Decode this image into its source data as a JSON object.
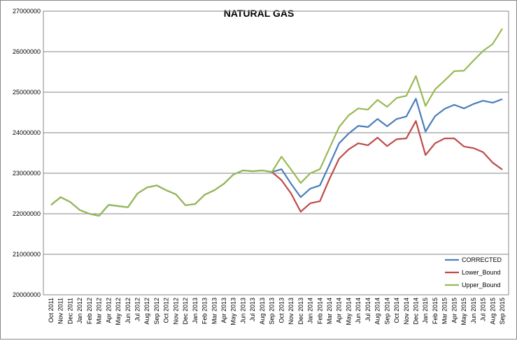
{
  "chart_data": {
    "type": "line",
    "title": "NATURAL  GAS",
    "categories": [
      "Oct 2011",
      "Nov 2011",
      "Dec 2011",
      "Jan 2012",
      "Feb 2012",
      "Mar 2012",
      "Apr 2012",
      "May 2012",
      "Jun 2012",
      "Jul 2012",
      "Aug 2012",
      "Sep 2012",
      "Oct 2012",
      "Nov 2012",
      "Dec 2012",
      "Jan 2013",
      "Feb 2013",
      "Mar 2013",
      "Apr 2013",
      "May 2013",
      "Jun 2013",
      "Jul 2013",
      "Aug 2013",
      "Sep 2013",
      "Oct 2013",
      "Nov 2013",
      "Dec 2013",
      "Jan 2014",
      "Feb 2014",
      "Mar 2014",
      "Apr 2014",
      "May 2014",
      "Jun 2014",
      "Jul 2014",
      "Aug 2014",
      "Sep 2014",
      "Oct 2014",
      "Nov 2014",
      "Dec 2014",
      "Jan 2015",
      "Feb 2015",
      "Mar 2015",
      "Apr 2015",
      "May 2015",
      "Jun 2015",
      "Jul 2015",
      "Aug 2015",
      "Sep 2015"
    ],
    "series": [
      {
        "name": "CORRECTED",
        "color": "#4a7ebb",
        "values": [
          22220000,
          22410000,
          22290000,
          22090000,
          22000000,
          21950000,
          22220000,
          22190000,
          22160000,
          22500000,
          22650000,
          22700000,
          22580000,
          22480000,
          22210000,
          22240000,
          22470000,
          22580000,
          22740000,
          22970000,
          23070000,
          23050000,
          23070000,
          23030000,
          23100000,
          22740000,
          22410000,
          22620000,
          22700000,
          23210000,
          23740000,
          23980000,
          24170000,
          24140000,
          24340000,
          24160000,
          24340000,
          24400000,
          24840000,
          24030000,
          24410000,
          24590000,
          24690000,
          24600000,
          24710000,
          24790000,
          24740000,
          24830000
        ]
      },
      {
        "name": "Lower_Bound",
        "color": "#be4b48",
        "values": [
          null,
          null,
          null,
          null,
          null,
          null,
          null,
          null,
          null,
          null,
          null,
          null,
          null,
          null,
          null,
          null,
          null,
          null,
          null,
          null,
          null,
          null,
          null,
          23030000,
          22830000,
          22500000,
          22050000,
          22260000,
          22310000,
          22860000,
          23360000,
          23590000,
          23740000,
          23690000,
          23880000,
          23670000,
          23840000,
          23860000,
          24290000,
          23450000,
          23740000,
          23860000,
          23860000,
          23660000,
          23620000,
          23520000,
          23260000,
          23090000
        ]
      },
      {
        "name": "Upper_Bound",
        "color": "#98b954",
        "values": [
          22220000,
          22410000,
          22290000,
          22090000,
          22000000,
          21950000,
          22220000,
          22190000,
          22160000,
          22500000,
          22650000,
          22700000,
          22580000,
          22480000,
          22210000,
          22240000,
          22470000,
          22580000,
          22740000,
          22970000,
          23070000,
          23050000,
          23070000,
          23030000,
          23410000,
          23090000,
          22760000,
          23000000,
          23100000,
          23620000,
          24140000,
          24430000,
          24600000,
          24570000,
          24810000,
          24640000,
          24860000,
          24910000,
          25400000,
          24660000,
          25070000,
          25290000,
          25520000,
          25530000,
          25780000,
          26020000,
          26190000,
          26570000
        ]
      }
    ],
    "ylim": [
      20000000,
      27000000
    ],
    "yticks": [
      20000000,
      21000000,
      22000000,
      23000000,
      24000000,
      25000000,
      26000000,
      27000000
    ],
    "grid": true,
    "legend": "lower right"
  }
}
